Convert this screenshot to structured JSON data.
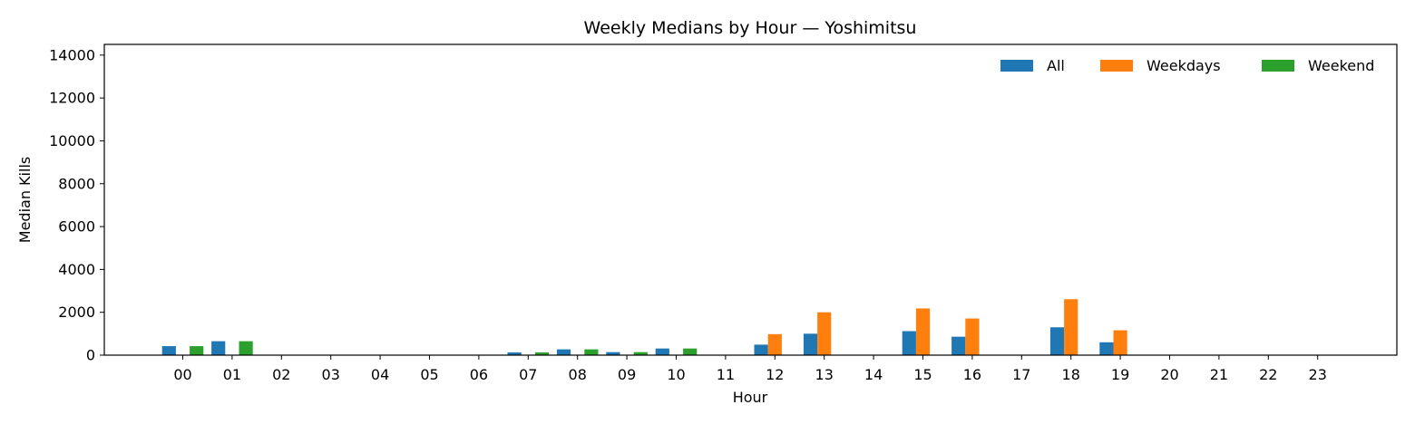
{
  "chart_data": {
    "type": "bar",
    "title": "Weekly Medians by Hour — Yoshimitsu",
    "xlabel": "Hour",
    "ylabel": "Median Kills",
    "ylim": [
      0,
      14500
    ],
    "yticks": [
      0,
      2000,
      4000,
      6000,
      8000,
      10000,
      12000,
      14000
    ],
    "grid": false,
    "legend_position": "top-right",
    "categories": [
      "00",
      "01",
      "02",
      "03",
      "04",
      "05",
      "06",
      "07",
      "08",
      "09",
      "10",
      "11",
      "12",
      "13",
      "14",
      "15",
      "16",
      "17",
      "18",
      "19",
      "20",
      "21",
      "22",
      "23"
    ],
    "series": [
      {
        "name": "All",
        "color": "#1f77b4",
        "values": [
          420,
          650,
          0,
          0,
          0,
          0,
          0,
          130,
          270,
          140,
          310,
          0,
          490,
          1000,
          0,
          1120,
          860,
          0,
          1300,
          600,
          0,
          0,
          0,
          0
        ]
      },
      {
        "name": "Weekdays",
        "color": "#ff7f0e",
        "values": [
          0,
          0,
          0,
          0,
          0,
          0,
          0,
          0,
          0,
          0,
          0,
          0,
          980,
          2000,
          0,
          2180,
          1710,
          0,
          2610,
          1160,
          0,
          0,
          0,
          0
        ]
      },
      {
        "name": "Weekend",
        "color": "#2ca02c",
        "values": [
          420,
          650,
          0,
          0,
          0,
          0,
          0,
          130,
          270,
          140,
          310,
          0,
          0,
          0,
          0,
          0,
          0,
          0,
          0,
          0,
          0,
          0,
          0,
          0
        ]
      }
    ]
  }
}
